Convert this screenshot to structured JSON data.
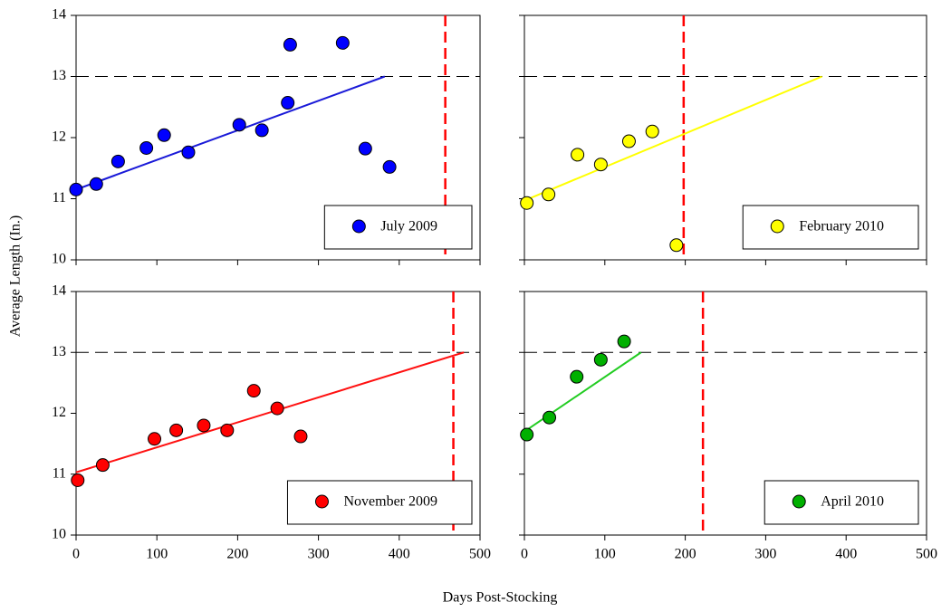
{
  "xlabel": "Days Post-Stocking",
  "ylabel": "Average Length (In.)",
  "chart_data": [
    {
      "type": "scatter",
      "xlim": [
        0,
        500
      ],
      "ylim": [
        10,
        14
      ],
      "xticks": [
        0,
        100,
        200,
        300,
        400,
        500
      ],
      "yticks": [
        10,
        11,
        12,
        13,
        14
      ],
      "series": [
        {
          "name": "July 2009",
          "color": "#0000ff",
          "x": [
            0,
            25,
            52,
            87,
            109,
            139,
            202,
            230,
            265,
            262,
            330,
            358,
            388
          ],
          "values": [
            11.15,
            11.24,
            11.61,
            11.83,
            12.04,
            11.76,
            12.21,
            12.12,
            13.52,
            12.57,
            13.55,
            11.82,
            11.52
          ]
        }
      ],
      "fit": {
        "color": "#1a1ad8",
        "x": [
          0,
          382
        ],
        "y": [
          11.15,
          13.0
        ]
      },
      "hline": 13,
      "vline": 457
    },
    {
      "type": "scatter",
      "xlim": [
        0,
        500
      ],
      "ylim": [
        10,
        14
      ],
      "xticks": [
        0,
        100,
        200,
        300,
        400,
        500
      ],
      "yticks": [
        10,
        11,
        12,
        13,
        14
      ],
      "series": [
        {
          "name": "February 2010",
          "color": "#ffff00",
          "x": [
            3,
            30,
            66,
            95,
            130,
            159,
            189
          ],
          "values": [
            10.93,
            11.07,
            11.72,
            11.56,
            11.94,
            12.1,
            10.24
          ]
        }
      ],
      "fit": {
        "color": "#ffff00",
        "x": [
          0,
          370
        ],
        "y": [
          10.97,
          13.0
        ]
      },
      "hline": 13,
      "vline": 198
    },
    {
      "type": "scatter",
      "xlim": [
        0,
        500
      ],
      "ylim": [
        10,
        14
      ],
      "xticks": [
        0,
        100,
        200,
        300,
        400,
        500
      ],
      "yticks": [
        10,
        11,
        12,
        13,
        14
      ],
      "series": [
        {
          "name": "November 2009",
          "color": "#ff0000",
          "x": [
            2,
            33,
            97,
            124,
            158,
            187,
            220,
            249,
            278
          ],
          "values": [
            10.9,
            11.15,
            11.58,
            11.72,
            11.8,
            11.72,
            12.37,
            12.08,
            11.62
          ]
        }
      ],
      "fit": {
        "color": "#ff1010",
        "x": [
          0,
          480
        ],
        "y": [
          11.03,
          13.0
        ]
      },
      "hline": 13,
      "vline": 467
    },
    {
      "type": "scatter",
      "xlim": [
        0,
        500
      ],
      "ylim": [
        10,
        14
      ],
      "xticks": [
        0,
        100,
        200,
        300,
        400,
        500
      ],
      "yticks": [
        10,
        11,
        12,
        13,
        14
      ],
      "series": [
        {
          "name": "April 2010",
          "color": "#00b000",
          "x": [
            3,
            31,
            65,
            95,
            124
          ],
          "values": [
            11.65,
            11.93,
            12.6,
            12.88,
            13.18
          ]
        }
      ],
      "fit": {
        "color": "#22cc22",
        "x": [
          0,
          145
        ],
        "y": [
          11.7,
          13.0
        ]
      },
      "hline": 13,
      "vline": 222
    }
  ]
}
